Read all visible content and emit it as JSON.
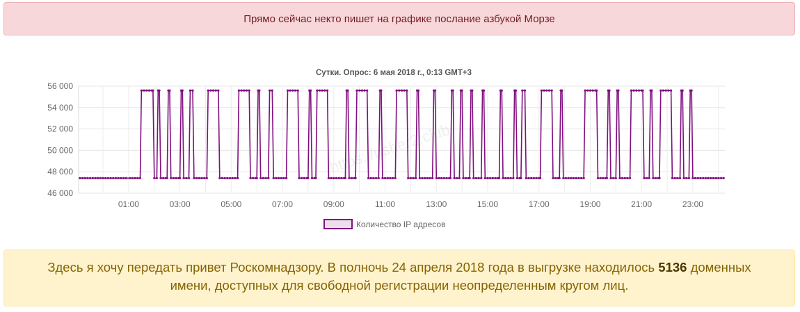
{
  "top_alert": {
    "text": "Прямо сейчас некто пишет на графике послание азбукой Морзе"
  },
  "watermark": "https://usher2.club",
  "chart_data": {
    "type": "line",
    "title": "Сутки. Опрос: 6 мая 2018 г., 0:13 GMT+3",
    "xlabel": "",
    "ylabel": "",
    "x_unit": "hours",
    "xlim": [
      -0.95,
      24.25
    ],
    "ylim": [
      46000,
      56000
    ],
    "x_ticks": [
      1,
      3,
      5,
      7,
      9,
      11,
      13,
      15,
      17,
      19,
      21,
      23
    ],
    "x_tick_labels": [
      "01:00",
      "03:00",
      "05:00",
      "07:00",
      "09:00",
      "11:00",
      "13:00",
      "15:00",
      "17:00",
      "19:00",
      "21:00",
      "23:00"
    ],
    "y_ticks": [
      46000,
      48000,
      50000,
      52000,
      54000,
      56000
    ],
    "y_tick_labels": [
      "46 000",
      "48 000",
      "50 000",
      "52 000",
      "54 000",
      "56 000"
    ],
    "grid": true,
    "legend_position": "bottom",
    "color": "#800f7f",
    "fill_color": "#ecdeea",
    "low_value": 47400,
    "high_value": 55600,
    "baseline": {
      "start": -0.9,
      "end": 0.95,
      "step": 0.1,
      "dip": {
        "x": 0.15,
        "y": 47100
      }
    },
    "pulses": [
      [
        1.5,
        1.95
      ],
      [
        2.15,
        2.2
      ],
      [
        2.55,
        2.6
      ],
      [
        3.05,
        3.1
      ],
      [
        3.4,
        3.5
      ],
      [
        4.1,
        4.5
      ],
      [
        5.3,
        5.7
      ],
      [
        6.05,
        6.1
      ],
      [
        6.5,
        6.6
      ],
      [
        7.2,
        7.6
      ],
      [
        8.05,
        8.1
      ],
      [
        8.35,
        8.75
      ],
      [
        9.5,
        9.55
      ],
      [
        9.9,
        10.3
      ],
      [
        10.8,
        10.85
      ],
      [
        11.45,
        11.85
      ],
      [
        12.25,
        12.3
      ],
      [
        12.9,
        12.95
      ],
      [
        13.6,
        13.65
      ],
      [
        13.95,
        14.0
      ],
      [
        14.35,
        14.4
      ],
      [
        14.8,
        14.85
      ],
      [
        15.5,
        15.55
      ],
      [
        16.05,
        16.1
      ],
      [
        16.35,
        16.45
      ],
      [
        17.1,
        17.5
      ],
      [
        17.85,
        17.9
      ],
      [
        18.8,
        19.25
      ],
      [
        19.7,
        19.75
      ],
      [
        20.05,
        20.1
      ],
      [
        20.6,
        21.05
      ],
      [
        21.35,
        21.4
      ],
      [
        21.75,
        22.15
      ],
      [
        22.55,
        22.6
      ],
      [
        22.9,
        22.95
      ]
    ],
    "series": [
      {
        "name": "Количество IP адресов"
      }
    ]
  },
  "bottom_alert": {
    "text_before": "Здесь я хочу передать привет Роскомнадзору. В полночь 24 апреля 2018 года в выгрузке находилось",
    "count": "5136",
    "text_after": "доменных имени, доступных для свободной регистрации неопределенным кругом лиц."
  }
}
